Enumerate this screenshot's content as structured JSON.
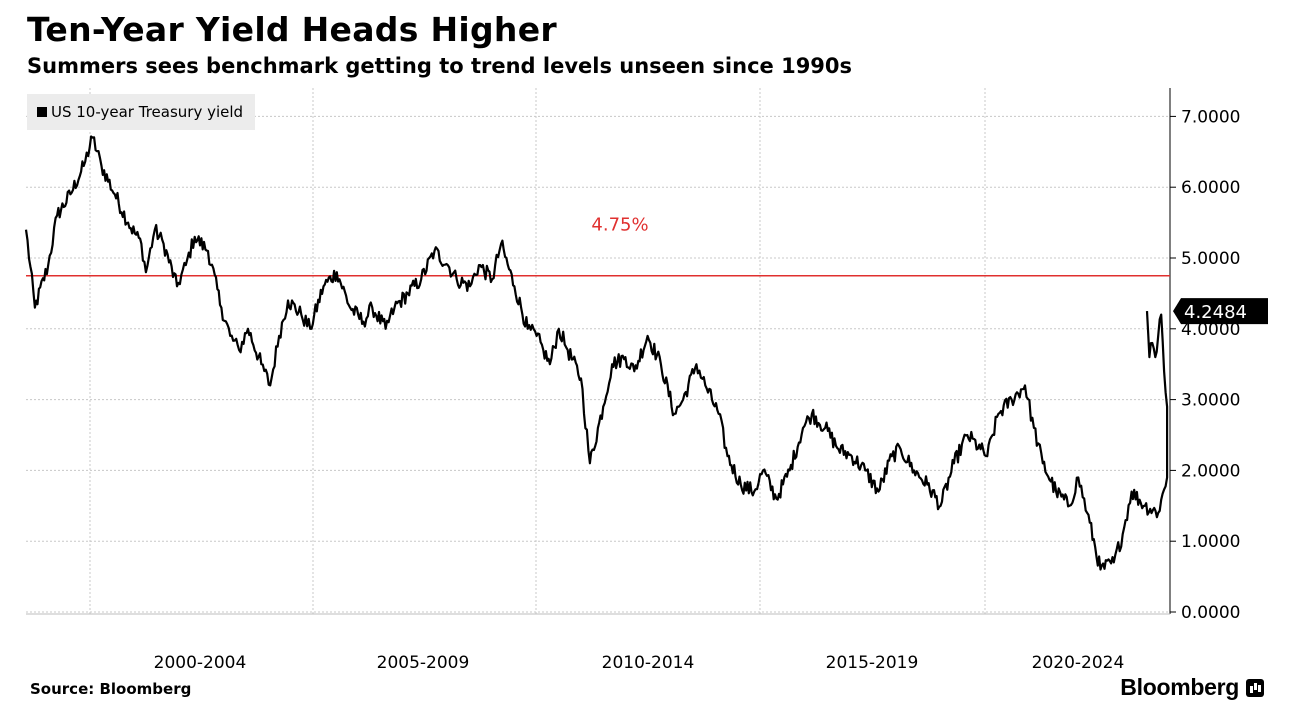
{
  "header": {
    "title": "Ten-Year Yield Heads Higher",
    "subtitle": "Summers sees benchmark getting to trend levels unseen since 1990s"
  },
  "footer": {
    "source": "Source: Bloomberg",
    "brand": "Bloomberg"
  },
  "chart_data": {
    "type": "line",
    "title": "Ten-Year Yield Heads Higher",
    "subtitle": "Summers sees benchmark getting to trend levels unseen since 1990s",
    "xlabel": "",
    "ylabel": "",
    "x_tick_labels": [
      "2000-2004",
      "2005-2009",
      "2010-2014",
      "2015-2019",
      "2020-2024"
    ],
    "y_ticks": [
      0,
      1,
      2,
      3,
      4,
      5,
      6,
      7
    ],
    "y_tick_labels": [
      "0.0000",
      "1.0000",
      "2.0000",
      "3.0000",
      "4.0000",
      "5.0000",
      "6.0000",
      "7.0000"
    ],
    "ylim": [
      0,
      7.4
    ],
    "xlim": [
      1997.3,
      2023.0
    ],
    "grid": true,
    "legend_position": "top-left",
    "y_axis_side": "right",
    "last_value_label": "4.2484",
    "colors": {
      "line": "#000000",
      "reference": "#e0302f",
      "grid": "#c8c8c8"
    },
    "series": [
      {
        "name": "US 10-year Treasury yield",
        "x": [
          1997.3,
          1997.5,
          1997.8,
          1998.0,
          1998.3,
          1998.6,
          1998.8,
          1999.0,
          1999.3,
          1999.6,
          1999.9,
          2000.0,
          2000.2,
          2000.4,
          2000.7,
          2000.9,
          2001.1,
          2001.4,
          2001.7,
          2001.9,
          2002.1,
          2002.3,
          2002.6,
          2002.8,
          2003.0,
          2003.2,
          2003.5,
          2003.7,
          2004.0,
          2004.3,
          2004.6,
          2004.9,
          2005.1,
          2005.4,
          2005.6,
          2005.9,
          2006.2,
          2006.5,
          2006.8,
          2007.0,
          2007.3,
          2007.5,
          2007.8,
          2008.0,
          2008.3,
          2008.6,
          2008.8,
          2008.95,
          2009.1,
          2009.3,
          2009.5,
          2009.8,
          2010.0,
          2010.3,
          2010.5,
          2010.8,
          2011.0,
          2011.3,
          2011.6,
          2011.9,
          2012.1,
          2012.4,
          2012.6,
          2012.9,
          2013.1,
          2013.4,
          2013.7,
          2013.9,
          2014.2,
          2014.5,
          2014.8,
          2015.0,
          2015.3,
          2015.6,
          2015.9,
          2016.2,
          2016.5,
          2016.8,
          2017.0,
          2017.3,
          2017.6,
          2017.9,
          2018.2,
          2018.5,
          2018.8,
          2018.95,
          2019.2,
          2019.5,
          2019.8,
          2020.0,
          2020.2,
          2020.5,
          2020.8,
          2021.0,
          2021.2,
          2021.5,
          2021.8,
          2022.0,
          2022.2,
          2022.5,
          2022.8,
          2023.0
        ],
        "values": [
          5.4,
          4.3,
          4.9,
          5.6,
          5.9,
          6.3,
          6.7,
          6.3,
          5.9,
          5.5,
          5.2,
          4.8,
          5.4,
          5.2,
          4.6,
          4.9,
          5.3,
          5.1,
          4.3,
          3.9,
          3.7,
          4.0,
          3.5,
          3.2,
          3.9,
          4.4,
          4.2,
          4.0,
          4.6,
          4.8,
          4.3,
          4.1,
          4.3,
          4.0,
          4.3,
          4.5,
          4.7,
          5.1,
          4.9,
          4.7,
          4.6,
          4.9,
          4.7,
          5.2,
          4.6,
          4.0,
          3.9,
          3.7,
          3.5,
          4.0,
          3.7,
          3.3,
          2.1,
          2.9,
          3.5,
          3.6,
          3.4,
          3.9,
          3.5,
          2.8,
          3.0,
          3.5,
          3.2,
          2.8,
          2.2,
          1.8,
          1.7,
          2.0,
          1.6,
          2.0,
          2.6,
          2.8,
          2.6,
          2.3,
          2.2,
          2.0,
          1.7,
          2.2,
          2.3,
          2.0,
          1.8,
          1.5,
          2.1,
          2.5,
          2.3,
          2.2,
          2.8,
          3.0,
          3.2,
          2.6,
          2.1,
          1.7,
          1.5,
          1.9,
          1.4,
          0.6,
          0.7,
          1.1,
          1.7,
          1.5,
          1.4,
          1.9
        ],
        "x_post": [
          2023.2,
          2023.45,
          2023.7,
          2023.95,
          2024.2,
          2024.45,
          2024.7,
          2024.9
        ],
        "values_post": [
          2.9,
          3.4,
          4.2,
          3.9,
          3.6,
          3.8,
          3.6,
          4.25
        ]
      }
    ],
    "reference_line": {
      "value": 4.75,
      "label": "4.75%"
    }
  }
}
